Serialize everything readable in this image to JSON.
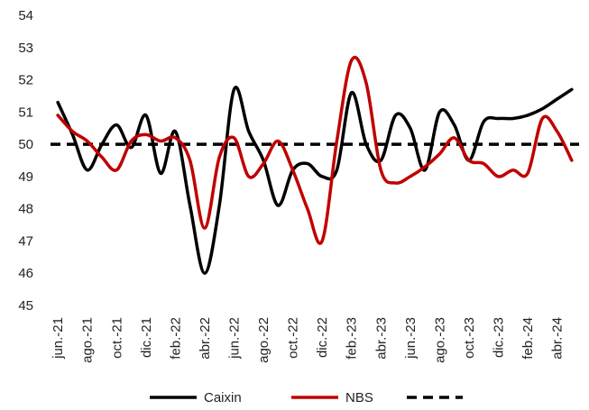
{
  "chart_data": {
    "type": "line",
    "title": "",
    "xlabel": "",
    "ylabel": "",
    "ylim": [
      45,
      54
    ],
    "yticks": [
      45,
      46,
      47,
      48,
      49,
      50,
      51,
      52,
      53,
      54
    ],
    "grid": false,
    "legend_position": "bottom",
    "x": [
      "jun.-21",
      "jul.-21",
      "ago.-21",
      "sep.-21",
      "oct.-21",
      "nov.-21",
      "dic.-21",
      "ene.-22",
      "feb.-22",
      "mar.-22",
      "abr.-22",
      "may.-22",
      "jun.-22",
      "jul.-22",
      "ago.-22",
      "sep.-22",
      "oct.-22",
      "nov.-22",
      "dic.-22",
      "ene.-23",
      "feb.-23",
      "mar.-23",
      "abr.-23",
      "may.-23",
      "jun.-23",
      "jul.-23",
      "ago.-23",
      "sep.-23",
      "oct.-23",
      "nov.-23",
      "dic.-23",
      "ene.-24",
      "feb.-24",
      "mar.-24",
      "abr.-24",
      "may.-24"
    ],
    "x_tick_labels": [
      "jun.-21",
      "ago.-21",
      "oct.-21",
      "dic.-21",
      "feb.-22",
      "abr.-22",
      "jun.-22",
      "ago.-22",
      "oct.-22",
      "dic.-22",
      "feb.-23",
      "abr.-23",
      "jun.-23",
      "ago.-23",
      "oct.-23",
      "dic.-23",
      "feb.-24",
      "abr.-24"
    ],
    "series": [
      {
        "name": "Caixin",
        "color": "#000000",
        "style": "solid",
        "values": [
          51.3,
          50.3,
          49.2,
          50.0,
          50.6,
          49.9,
          50.9,
          49.1,
          50.4,
          48.1,
          46.0,
          48.1,
          51.7,
          50.4,
          49.5,
          48.1,
          49.2,
          49.4,
          49.0,
          49.2,
          51.6,
          50.0,
          49.5,
          50.9,
          50.5,
          49.2,
          51.0,
          50.6,
          49.5,
          50.7,
          50.8,
          50.8,
          50.9,
          51.1,
          51.4,
          51.7
        ]
      },
      {
        "name": "NBS",
        "color": "#c00000",
        "style": "solid",
        "values": [
          50.9,
          50.4,
          50.1,
          49.6,
          49.2,
          50.1,
          50.3,
          50.1,
          50.2,
          49.5,
          47.4,
          49.6,
          50.2,
          49.0,
          49.4,
          50.1,
          49.2,
          48.0,
          47.0,
          50.1,
          52.6,
          51.9,
          49.2,
          48.8,
          49.0,
          49.3,
          49.7,
          50.2,
          49.5,
          49.4,
          49.0,
          49.2,
          49.1,
          50.8,
          50.4,
          49.5
        ]
      },
      {
        "name": "",
        "color": "#000000",
        "style": "dashed",
        "values": [
          50,
          50,
          50,
          50,
          50,
          50,
          50,
          50,
          50,
          50,
          50,
          50,
          50,
          50,
          50,
          50,
          50,
          50,
          50,
          50,
          50,
          50,
          50,
          50,
          50,
          50,
          50,
          50,
          50,
          50,
          50,
          50,
          50,
          50,
          50,
          50
        ]
      }
    ]
  },
  "legend": {
    "items": [
      {
        "label": "Caixin",
        "color": "#000000",
        "style": "solid"
      },
      {
        "label": "NBS",
        "color": "#c00000",
        "style": "solid"
      },
      {
        "label": "",
        "color": "#000000",
        "style": "dashed"
      }
    ]
  }
}
